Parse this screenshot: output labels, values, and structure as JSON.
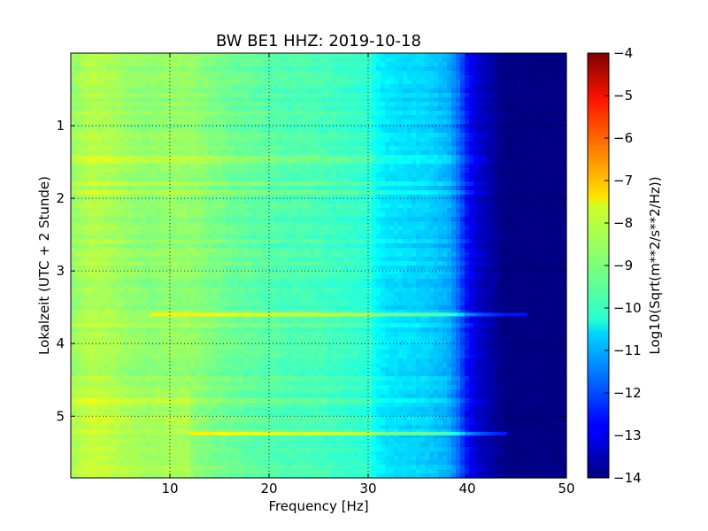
{
  "chart_data": {
    "type": "heatmap",
    "title": "BW BE1 HHZ: 2019-10-18",
    "xlabel": "Frequency [Hz]",
    "ylabel": "Lokalzeit (UTC + 2 Stunde)",
    "xlim": [
      0,
      50
    ],
    "ylim": [
      5.85,
      0
    ],
    "x_ticks": [
      10,
      20,
      30,
      40,
      50
    ],
    "y_ticks": [
      1,
      2,
      3,
      4,
      5
    ],
    "grid": true,
    "colormap": "jet",
    "colorbar": {
      "label": "Log10(Sqrt(m**2/s**2/Hz))",
      "range": [
        -14,
        -4
      ],
      "ticks": [
        -4,
        -5,
        -6,
        -7,
        -8,
        -9,
        -10,
        -11,
        -12,
        -13,
        -14
      ]
    },
    "profile": {
      "frequency_hz": [
        0,
        2,
        4,
        6,
        8,
        10,
        12,
        14,
        16,
        18,
        20,
        22,
        24,
        26,
        28,
        30,
        31,
        32,
        34,
        36,
        38,
        39,
        40,
        41,
        42,
        43,
        44,
        46,
        48,
        50
      ],
      "log_amplitude": [
        -8.8,
        -8.5,
        -8.6,
        -8.8,
        -8.9,
        -8.8,
        -8.8,
        -9.0,
        -9.2,
        -9.3,
        -9.4,
        -9.5,
        -9.5,
        -9.6,
        -9.7,
        -9.8,
        -10.3,
        -10.5,
        -10.6,
        -10.7,
        -11.0,
        -11.6,
        -12.6,
        -13.2,
        -13.5,
        -13.8,
        -14.0,
        -14.0,
        -14.0,
        -14.0
      ]
    },
    "highlight_lines": [
      {
        "time": 3.6,
        "from_hz": 8,
        "to_hz": 46
      },
      {
        "time": 5.24,
        "from_hz": 12,
        "to_hz": 44
      }
    ]
  }
}
